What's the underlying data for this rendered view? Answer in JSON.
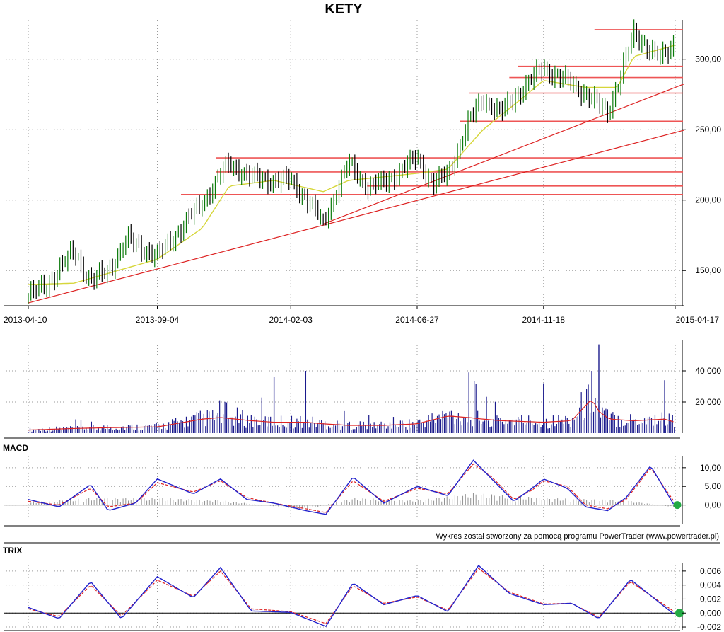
{
  "colors": {
    "price_up": "#0a7a0a",
    "price_down": "#000000",
    "ma": "#d6d63a",
    "support": "#ee5555",
    "trendline": "#dd2222",
    "volume": "#1a1a8c",
    "volume_avg": "#dd2222",
    "indicator": "#2222cc",
    "signal": "#dd2222",
    "histogram": "#909090",
    "marker": "#22aa44"
  },
  "chart_data": [
    {
      "type": "line",
      "panel": "price",
      "title": "KETY",
      "x_tick_labels": [
        "2013-04-10",
        "2013-09-04",
        "2014-02-03",
        "2014-06-27",
        "2014-11-18",
        "2015-04-17"
      ],
      "y_tick_labels": [
        "300,00",
        "250,00",
        "200,00",
        "150,00"
      ],
      "ylim": [
        125,
        328
      ],
      "grid": true,
      "series": [
        {
          "style": "ohlc-bars",
          "x": [
            "2013-04-10",
            "2013-05-01",
            "2013-06-01",
            "2013-06-20",
            "2013-07-10",
            "2013-08-01",
            "2013-09-04",
            "2013-10-01",
            "2013-10-25",
            "2013-11-15",
            "2013-11-25",
            "2013-12-20",
            "2014-01-15",
            "2014-02-03",
            "2014-02-25",
            "2014-03-12",
            "2014-03-20",
            "2014-04-10",
            "2014-05-01",
            "2014-05-20",
            "2014-06-10",
            "2014-06-27",
            "2014-07-15",
            "2014-08-01",
            "2014-08-25",
            "2014-09-10",
            "2014-10-01",
            "2014-10-20",
            "2014-11-18",
            "2014-12-10",
            "2015-01-05",
            "2015-01-30",
            "2015-02-10",
            "2015-03-01",
            "2015-03-15",
            "2015-04-01",
            "2015-04-17"
          ],
          "values": [
            132,
            140,
            164,
            142,
            150,
            172,
            160,
            180,
            198,
            218,
            226,
            216,
            214,
            214,
            198,
            183,
            196,
            226,
            210,
            212,
            222,
            230,
            212,
            218,
            256,
            272,
            262,
            276,
            294,
            286,
            276,
            262,
            282,
            318,
            310,
            300,
            312
          ]
        },
        {
          "style": "moving-average",
          "x": [
            "2013-04-10",
            "2013-06-01",
            "2013-07-10",
            "2013-09-04",
            "2013-10-25",
            "2013-11-25",
            "2014-01-15",
            "2014-03-12",
            "2014-04-10",
            "2014-06-27",
            "2014-08-01",
            "2014-09-10",
            "2014-10-20",
            "2014-11-18",
            "2015-01-05",
            "2015-02-10",
            "2015-03-01",
            "2015-04-17"
          ],
          "values": [
            140,
            141,
            148,
            158,
            180,
            210,
            214,
            206,
            214,
            219,
            222,
            250,
            270,
            285,
            280,
            280,
            302,
            310
          ]
        }
      ],
      "trendlines": [
        {
          "x": [
            "2013-04-10",
            "2015-04-17"
          ],
          "y": [
            127,
            248
          ]
        },
        {
          "x": [
            "2014-03-12",
            "2015-04-17"
          ],
          "y": [
            183,
            280
          ]
        }
      ],
      "support_resistance": [
        {
          "y": 204,
          "x_start": "2013-10-01"
        },
        {
          "y": 210,
          "x_start": "2014-05-01"
        },
        {
          "y": 220,
          "x_start": "2013-11-10"
        },
        {
          "y": 230,
          "x_start": "2013-11-10"
        },
        {
          "y": 256,
          "x_start": "2014-08-15"
        },
        {
          "y": 276,
          "x_start": "2014-08-25"
        },
        {
          "y": 287,
          "x_start": "2014-10-10"
        },
        {
          "y": 295,
          "x_start": "2014-10-20"
        },
        {
          "y": 321,
          "x_start": "2015-01-15"
        }
      ]
    },
    {
      "type": "bar",
      "panel": "volume",
      "y_tick_labels": [
        "40 000",
        "20 000"
      ],
      "ylim": [
        0,
        60000
      ],
      "grid": true,
      "x": [
        "2013-04-10",
        "2013-06-01",
        "2013-07-10",
        "2013-09-04",
        "2013-10-25",
        "2013-11-15",
        "2013-12-20",
        "2014-01-15",
        "2014-02-03",
        "2014-02-20",
        "2014-03-12",
        "2014-04-10",
        "2014-05-20",
        "2014-06-27",
        "2014-08-01",
        "2014-08-25",
        "2014-09-10",
        "2014-10-01",
        "2014-11-18",
        "2014-12-20",
        "2015-01-12",
        "2015-01-20",
        "2015-02-01",
        "2015-03-01",
        "2015-04-05",
        "2015-04-17"
      ],
      "values": [
        4000,
        9000,
        6000,
        7000,
        15000,
        22000,
        12000,
        36000,
        10000,
        40000,
        16000,
        14000,
        10000,
        12000,
        20000,
        39000,
        25000,
        18000,
        32000,
        15000,
        40000,
        57000,
        17000,
        13000,
        34000,
        8000
      ],
      "average": [
        2000,
        3000,
        3500,
        4000,
        9000,
        10000,
        8000,
        7000,
        7000,
        7000,
        6000,
        5000,
        5000,
        6000,
        11000,
        10000,
        9000,
        8000,
        7000,
        8000,
        22000,
        14000,
        9000,
        8000,
        9000,
        7000
      ]
    },
    {
      "type": "line",
      "panel": "macd",
      "title": "MACD",
      "y_tick_labels": [
        "10,00",
        "5,00",
        "0,00"
      ],
      "ylim": [
        -5,
        13
      ],
      "grid": true,
      "series": [
        {
          "style": "indicator",
          "x": [
            "2013-04-10",
            "2013-05-15",
            "2013-06-20",
            "2013-07-10",
            "2013-08-10",
            "2013-09-04",
            "2013-10-15",
            "2013-11-15",
            "2013-12-15",
            "2014-01-15",
            "2014-02-20",
            "2014-03-15",
            "2014-04-15",
            "2014-05-20",
            "2014-06-27",
            "2014-08-01",
            "2014-08-30",
            "2014-09-20",
            "2014-10-15",
            "2014-11-05",
            "2014-11-18",
            "2014-12-15",
            "2015-01-05",
            "2015-01-30",
            "2015-02-20",
            "2015-03-20",
            "2015-04-17"
          ],
          "values": [
            1.5,
            -0.5,
            5.5,
            -1.5,
            0.5,
            7.0,
            3.0,
            7.0,
            1.5,
            0.5,
            -1.5,
            -2.5,
            7.5,
            0.5,
            5.0,
            2.5,
            12.0,
            7.0,
            1.0,
            4.5,
            7.0,
            4.5,
            -0.5,
            -1.5,
            2.0,
            10.5,
            -0.5
          ]
        },
        {
          "style": "signal",
          "x": [
            "2013-04-10",
            "2013-05-15",
            "2013-06-20",
            "2013-07-10",
            "2013-08-10",
            "2013-09-04",
            "2013-10-15",
            "2013-11-15",
            "2013-12-15",
            "2014-01-15",
            "2014-02-20",
            "2014-03-15",
            "2014-04-15",
            "2014-05-20",
            "2014-06-27",
            "2014-08-01",
            "2014-08-30",
            "2014-09-20",
            "2014-10-15",
            "2014-11-05",
            "2014-11-18",
            "2014-12-15",
            "2015-01-05",
            "2015-01-30",
            "2015-02-20",
            "2015-03-20",
            "2015-04-17"
          ],
          "values": [
            1.0,
            0.0,
            4.5,
            -0.5,
            0.5,
            6.0,
            3.5,
            6.5,
            2.0,
            0.5,
            -1.0,
            -2.0,
            6.5,
            1.0,
            4.5,
            3.0,
            11.0,
            7.5,
            1.5,
            4.0,
            6.5,
            5.0,
            0.0,
            -1.0,
            1.5,
            10.0,
            0.5
          ]
        },
        {
          "style": "histogram",
          "x": [
            "2013-04-10",
            "2013-06-20",
            "2013-09-04",
            "2013-11-15",
            "2014-02-20",
            "2014-04-15",
            "2014-06-27",
            "2014-08-30",
            "2014-11-18",
            "2015-02-20",
            "2015-04-17"
          ],
          "values": [
            0.5,
            1.5,
            1.5,
            1.0,
            -1.0,
            1.5,
            1.0,
            2.5,
            1.5,
            1.0,
            -0.5
          ]
        }
      ]
    },
    {
      "type": "line",
      "panel": "trix",
      "title": "TRIX",
      "y_tick_labels": [
        "0,006",
        "0,004",
        "0,002",
        "0,000",
        "-0,002"
      ],
      "ylim": [
        -0.0024,
        0.0072
      ],
      "grid": true,
      "series": [
        {
          "style": "indicator",
          "x": [
            "2013-04-10",
            "2013-05-15",
            "2013-06-20",
            "2013-07-25",
            "2013-09-04",
            "2013-10-15",
            "2013-11-15",
            "2013-12-20",
            "2014-02-03",
            "2014-03-15",
            "2014-04-15",
            "2014-05-20",
            "2014-06-27",
            "2014-08-01",
            "2014-09-05",
            "2014-10-10",
            "2014-11-18",
            "2014-12-20",
            "2015-01-20",
            "2015-02-25",
            "2015-04-17"
          ],
          "values": [
            0.0008,
            -0.0008,
            0.0045,
            -0.0008,
            0.0052,
            0.0022,
            0.0065,
            0.0003,
            0.0001,
            -0.0019,
            0.0043,
            0.0012,
            0.0025,
            0.0002,
            0.0068,
            0.0028,
            0.0012,
            0.0014,
            -0.0008,
            0.0048,
            -0.0003
          ]
        },
        {
          "style": "signal",
          "x": [
            "2013-04-10",
            "2013-05-15",
            "2013-06-20",
            "2013-07-25",
            "2013-09-04",
            "2013-10-15",
            "2013-11-15",
            "2013-12-20",
            "2014-02-03",
            "2014-03-15",
            "2014-04-15",
            "2014-05-20",
            "2014-06-27",
            "2014-08-01",
            "2014-09-05",
            "2014-10-10",
            "2014-11-18",
            "2014-12-20",
            "2015-01-20",
            "2015-02-25",
            "2015-04-17"
          ],
          "values": [
            0.0006,
            -0.0005,
            0.004,
            -0.0004,
            0.0047,
            0.0024,
            0.006,
            0.0006,
            0.0002,
            -0.0015,
            0.0039,
            0.0014,
            0.0023,
            0.0004,
            0.0064,
            0.003,
            0.0013,
            0.0014,
            -0.0006,
            0.0045,
            0.0001
          ]
        }
      ]
    }
  ],
  "credit": "Wykres został stworzony za pomocą programu PowerTrader (www.powertrader.pl)"
}
